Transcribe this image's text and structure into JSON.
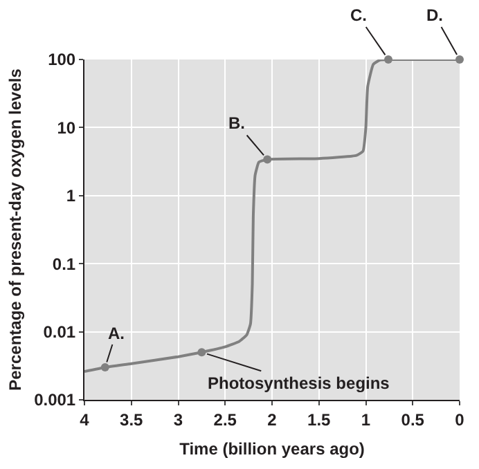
{
  "chart_data": {
    "type": "line",
    "xlabel": "Time (billion years ago)",
    "ylabel": "Percentage of present-day oxygen levels",
    "log": "y",
    "xlim": [
      4,
      0
    ],
    "ylim": [
      0.001,
      100
    ],
    "xticks": [
      4,
      3.5,
      3,
      2.5,
      2,
      1.5,
      1,
      0.5,
      0
    ],
    "yticks": [
      0.001,
      0.01,
      0.1,
      1,
      10,
      100
    ],
    "grid": true,
    "series": [
      {
        "color": "#808080",
        "marker": "none",
        "x": [
          4,
          3.78,
          3.5,
          3,
          2.75,
          2.5,
          2.35,
          2.27,
          2.23,
          2.21,
          2.2,
          2.18,
          2.14,
          2.05,
          1.5,
          1.1,
          1.03,
          1.0,
          0.98,
          0.92,
          0.85,
          0.76,
          0
        ],
        "values": [
          0.0026,
          0.003,
          0.0034,
          0.0043,
          0.005,
          0.006,
          0.0072,
          0.009,
          0.013,
          0.05,
          0.5,
          2,
          3.1,
          3.4,
          3.5,
          3.9,
          4.5,
          10,
          40,
          85,
          98,
          100,
          100
        ]
      },
      {
        "type": "scatter",
        "color": "#808080",
        "marker": "circle",
        "x": [
          3.78,
          2.75,
          2.05,
          0.76,
          0
        ],
        "values": [
          0.003,
          0.005,
          3.4,
          100,
          100
        ]
      }
    ],
    "annotations": [
      {
        "text": "A.",
        "x": 3.78,
        "y": 0.003
      },
      {
        "text": "Photosynthesis begins",
        "x": 2.75,
        "y": 0.005
      },
      {
        "text": "B.",
        "x": 2.05,
        "y": 3.4
      },
      {
        "text": "C.",
        "x": 0.76,
        "y": 100
      },
      {
        "text": "D.",
        "x": 0,
        "y": 100
      }
    ]
  }
}
